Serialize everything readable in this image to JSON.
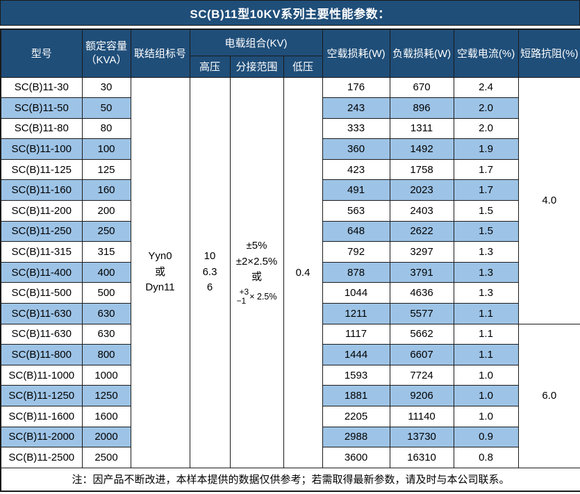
{
  "title": "SC(B)11型10KV系列主要性能参数：",
  "header": {
    "model": "型号",
    "capacity_line1": "额定容量",
    "capacity_line2": "（KVA）",
    "connection": "联结组标号",
    "voltage_group": "电载组合(KV)",
    "hv": "高压",
    "tap_range": "分接范围",
    "lv": "低压",
    "no_load_loss": "空载损耗(W)",
    "load_loss": "负载损耗(W)",
    "no_load_current": "空载电流(%)",
    "impedance": "短路抗阻(%)"
  },
  "merged": {
    "connection_lines": [
      "Yyn0",
      "或",
      "Dyn11"
    ],
    "hv_lines": [
      "10",
      "6.3",
      "6"
    ],
    "tap_lines": [
      "±5%",
      "±2×2.5%",
      "或"
    ],
    "tap_fraction": {
      "top": "+3",
      "bottom": "−1",
      "factor": "× 2.5%"
    },
    "lv": "0.4",
    "impedance_groups": [
      {
        "value": "4.0",
        "start_index": 0,
        "rows": 12
      },
      {
        "value": "6.0",
        "start_index": 12,
        "rows": 7
      }
    ]
  },
  "rows": [
    {
      "model": "SC(B)11-30",
      "capacity": "30",
      "no_load_loss": "176",
      "load_loss": "670",
      "no_load_current": "2.4"
    },
    {
      "model": "SC(B)11-50",
      "capacity": "50",
      "no_load_loss": "243",
      "load_loss": "896",
      "no_load_current": "2.0"
    },
    {
      "model": "SC(B)11-80",
      "capacity": "80",
      "no_load_loss": "333",
      "load_loss": "1311",
      "no_load_current": "2.0"
    },
    {
      "model": "SC(B)11-100",
      "capacity": "100",
      "no_load_loss": "360",
      "load_loss": "1492",
      "no_load_current": "1.9"
    },
    {
      "model": "SC(B)11-125",
      "capacity": "125",
      "no_load_loss": "423",
      "load_loss": "1758",
      "no_load_current": "1.7"
    },
    {
      "model": "SC(B)11-160",
      "capacity": "160",
      "no_load_loss": "491",
      "load_loss": "2023",
      "no_load_current": "1.7"
    },
    {
      "model": "SC(B)11-200",
      "capacity": "200",
      "no_load_loss": "563",
      "load_loss": "2403",
      "no_load_current": "1.5"
    },
    {
      "model": "SC(B)11-250",
      "capacity": "250",
      "no_load_loss": "648",
      "load_loss": "2622",
      "no_load_current": "1.5"
    },
    {
      "model": "SC(B)11-315",
      "capacity": "315",
      "no_load_loss": "792",
      "load_loss": "3297",
      "no_load_current": "1.3"
    },
    {
      "model": "SC(B)11-400",
      "capacity": "400",
      "no_load_loss": "878",
      "load_loss": "3791",
      "no_load_current": "1.3"
    },
    {
      "model": "SC(B)11-500",
      "capacity": "500",
      "no_load_loss": "1044",
      "load_loss": "4636",
      "no_load_current": "1.3"
    },
    {
      "model": "SC(B)11-630",
      "capacity": "630",
      "no_load_loss": "1211",
      "load_loss": "5577",
      "no_load_current": "1.1"
    },
    {
      "model": "SC(B)11-630",
      "capacity": "630",
      "no_load_loss": "1117",
      "load_loss": "5662",
      "no_load_current": "1.1"
    },
    {
      "model": "SC(B)11-800",
      "capacity": "800",
      "no_load_loss": "1444",
      "load_loss": "6607",
      "no_load_current": "1.1"
    },
    {
      "model": "SC(B)11-1000",
      "capacity": "1000",
      "no_load_loss": "1593",
      "load_loss": "7724",
      "no_load_current": "1.0"
    },
    {
      "model": "SC(B)11-1250",
      "capacity": "1250",
      "no_load_loss": "1881",
      "load_loss": "9206",
      "no_load_current": "1.0"
    },
    {
      "model": "SC(B)11-1600",
      "capacity": "1600",
      "no_load_loss": "2205",
      "load_loss": "11140",
      "no_load_current": "1.0"
    },
    {
      "model": "SC(B)11-2000",
      "capacity": "2000",
      "no_load_loss": "2988",
      "load_loss": "13730",
      "no_load_current": "0.9"
    },
    {
      "model": "SC(B)11-2500",
      "capacity": "2500",
      "no_load_loss": "3600",
      "load_loss": "16310",
      "no_load_current": "0.8"
    }
  ],
  "footer_note": "注：因产品不断改进，本样本提供的数据仅供参考；若需取得最新参数，请及时与本公司联系。",
  "colors": {
    "header_bg": "#1F4E79",
    "header_text": "#FFFFFF",
    "row_alt_bg": "#9DC3E6",
    "border": "#1A1A1A",
    "body_text": "#000000"
  }
}
